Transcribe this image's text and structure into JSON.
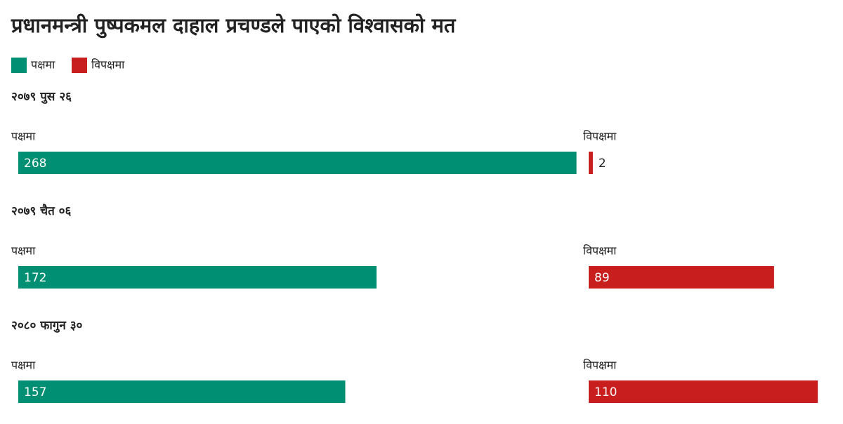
{
  "chart_data": {
    "type": "bar",
    "title": "प्रधानमन्त्री पुष्पकमल दाहाल प्रचण्डले पाएको विश्वासको मत",
    "series": [
      {
        "name": "पक्षमा",
        "color": "#008f72"
      },
      {
        "name": "विपक्षमा",
        "color": "#c81e1e"
      }
    ],
    "groups": [
      {
        "label": "२०७९ पुस २६",
        "values": [
          268,
          2
        ]
      },
      {
        "label": "२०७९ चैत ०६",
        "values": [
          172,
          89
        ]
      },
      {
        "label": "२०८० फागुन ३०",
        "values": [
          157,
          110
        ]
      }
    ]
  }
}
